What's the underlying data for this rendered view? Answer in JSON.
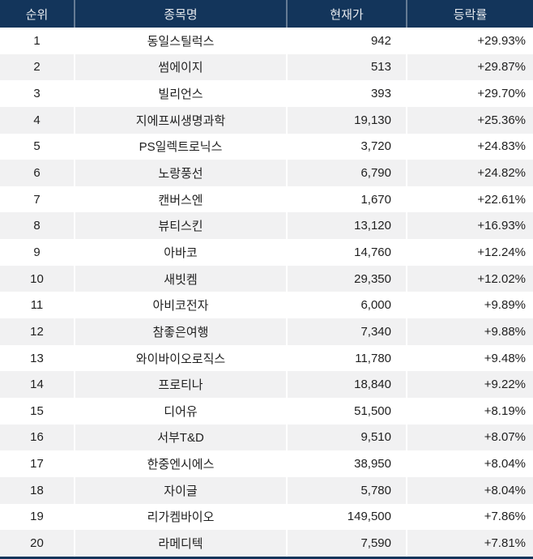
{
  "colors": {
    "header_bg": "#13355b",
    "header_text": "#e7eaee",
    "row_bg": "#ffffff",
    "row_alt_bg": "#f1f1f2",
    "body_text": "#1f1f1f",
    "bottom_border": "#13355b"
  },
  "chart_data": {
    "type": "table",
    "columns": [
      "순위",
      "종목명",
      "현재가",
      "등락률"
    ],
    "rows": [
      {
        "rank": "1",
        "name": "동일스틸럭스",
        "price": "942",
        "change": "+29.93%"
      },
      {
        "rank": "2",
        "name": "썸에이지",
        "price": "513",
        "change": "+29.87%"
      },
      {
        "rank": "3",
        "name": "빌리언스",
        "price": "393",
        "change": "+29.70%"
      },
      {
        "rank": "4",
        "name": "지에프씨생명과학",
        "price": "19,130",
        "change": "+25.36%"
      },
      {
        "rank": "5",
        "name": "PS일렉트로닉스",
        "price": "3,720",
        "change": "+24.83%"
      },
      {
        "rank": "6",
        "name": "노랑풍선",
        "price": "6,790",
        "change": "+24.82%"
      },
      {
        "rank": "7",
        "name": "캔버스엔",
        "price": "1,670",
        "change": "+22.61%"
      },
      {
        "rank": "8",
        "name": "뷰티스킨",
        "price": "13,120",
        "change": "+16.93%"
      },
      {
        "rank": "9",
        "name": "아바코",
        "price": "14,760",
        "change": "+12.24%"
      },
      {
        "rank": "10",
        "name": "새빗켐",
        "price": "29,350",
        "change": "+12.02%"
      },
      {
        "rank": "11",
        "name": "아비코전자",
        "price": "6,000",
        "change": "+9.89%"
      },
      {
        "rank": "12",
        "name": "참좋은여행",
        "price": "7,340",
        "change": "+9.88%"
      },
      {
        "rank": "13",
        "name": "와이바이오로직스",
        "price": "11,780",
        "change": "+9.48%"
      },
      {
        "rank": "14",
        "name": "프로티나",
        "price": "18,840",
        "change": "+9.22%"
      },
      {
        "rank": "15",
        "name": "디어유",
        "price": "51,500",
        "change": "+8.19%"
      },
      {
        "rank": "16",
        "name": "서부T&D",
        "price": "9,510",
        "change": "+8.07%"
      },
      {
        "rank": "17",
        "name": "한중엔시에스",
        "price": "38,950",
        "change": "+8.04%"
      },
      {
        "rank": "18",
        "name": "자이글",
        "price": "5,780",
        "change": "+8.04%"
      },
      {
        "rank": "19",
        "name": "리가켐바이오",
        "price": "149,500",
        "change": "+7.86%"
      },
      {
        "rank": "20",
        "name": "라메디텍",
        "price": "7,590",
        "change": "+7.81%"
      }
    ]
  }
}
